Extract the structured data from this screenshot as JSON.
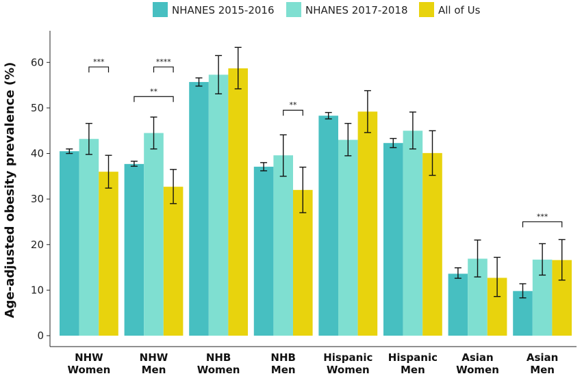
{
  "chart_data": {
    "type": "bar",
    "title": "",
    "xlabel": "",
    "ylabel": "Age-adjusted obesity prevalence (%)",
    "ylim": [
      0,
      68
    ],
    "yticks": [
      "0",
      "10",
      "20",
      "30",
      "40",
      "50",
      "60"
    ],
    "categories": [
      [
        "NHW",
        "Women"
      ],
      [
        "NHW",
        "Men"
      ],
      [
        "NHB",
        "Women"
      ],
      [
        "NHB",
        "Men"
      ],
      [
        "Hispanic",
        "Women"
      ],
      [
        "Hispanic",
        "Men"
      ],
      [
        "Asian",
        "Women"
      ],
      [
        "Asian",
        "Men"
      ]
    ],
    "series": [
      {
        "name": "NHANES 2015-2016",
        "color": "#47bfc1",
        "values": [
          40.5,
          37.7,
          55.7,
          37.1,
          48.3,
          42.3,
          13.6,
          9.8
        ],
        "err_low": [
          40.0,
          37.2,
          54.8,
          36.2,
          47.6,
          41.3,
          12.6,
          8.3
        ],
        "err_high": [
          41.0,
          38.3,
          56.6,
          38.0,
          49.0,
          43.3,
          14.9,
          11.4
        ]
      },
      {
        "name": "NHANES 2017-2018",
        "color": "#7fdfd1",
        "values": [
          43.2,
          44.5,
          57.3,
          39.6,
          43.0,
          45.0,
          16.9,
          16.7
        ],
        "err_low": [
          39.8,
          41.0,
          53.1,
          35.0,
          39.5,
          41.0,
          12.9,
          13.3
        ],
        "err_high": [
          46.6,
          48.0,
          61.5,
          44.1,
          46.6,
          49.1,
          21.0,
          20.2
        ]
      },
      {
        "name": "All of Us",
        "color": "#e8d30d",
        "values": [
          36.0,
          32.7,
          58.7,
          32.0,
          49.2,
          40.1,
          12.7,
          16.6
        ],
        "err_low": [
          32.4,
          29.0,
          54.2,
          27.0,
          44.6,
          35.2,
          8.6,
          12.2
        ],
        "err_high": [
          39.6,
          36.5,
          63.3,
          37.0,
          53.8,
          45.0,
          17.2,
          21.1
        ]
      }
    ],
    "significance": [
      {
        "label": "***",
        "category": 0,
        "from_series": 1,
        "to_series": 2,
        "y": 59.0
      },
      {
        "label": "****",
        "category": 1,
        "from_series": 1,
        "to_series": 2,
        "y": 59.0
      },
      {
        "label": "**",
        "category": 1,
        "from_series": 0,
        "to_series": 2,
        "y": 52.5
      },
      {
        "label": "**",
        "category": 3,
        "from_series": 1,
        "to_series": 2,
        "y": 49.5
      },
      {
        "label": "***",
        "category": 7,
        "from_series": 0,
        "to_series": 2,
        "y": 25.0
      }
    ],
    "legend_position": "top"
  }
}
